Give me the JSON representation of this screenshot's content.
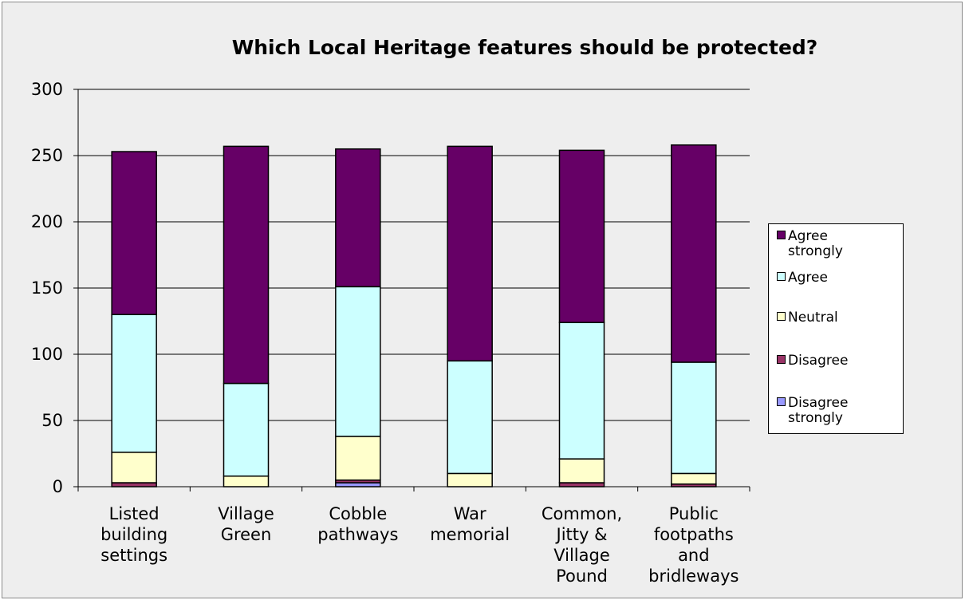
{
  "chart_data": {
    "type": "bar",
    "stacked": true,
    "title": "Which Local Heritage features should be protected?",
    "categories": [
      "Listed building settings",
      "Village Green",
      "Cobble pathways",
      "War memorial",
      "Common, Jitty & Village Pound",
      "Public footpaths and bridleways"
    ],
    "category_lines": [
      [
        "Listed",
        "building",
        "settings"
      ],
      [
        "Village",
        "Green"
      ],
      [
        "Cobble",
        "pathways"
      ],
      [
        "War",
        "memorial"
      ],
      [
        "Common,",
        "Jitty &",
        "Village",
        "Pound"
      ],
      [
        "Public",
        "footpaths",
        "and",
        "bridleways"
      ]
    ],
    "series": [
      {
        "name": "Disagree strongly",
        "color": "#9999ff",
        "values": [
          0,
          0,
          3,
          0,
          0,
          0
        ]
      },
      {
        "name": "Disagree",
        "color": "#993366",
        "values": [
          3,
          0,
          2,
          0,
          3,
          2
        ]
      },
      {
        "name": "Neutral",
        "color": "#ffffcc",
        "values": [
          23,
          8,
          33,
          10,
          18,
          8
        ]
      },
      {
        "name": "Agree",
        "color": "#ccffff",
        "values": [
          104,
          70,
          113,
          85,
          103,
          84
        ]
      },
      {
        "name": "Agree strongly",
        "color": "#660066",
        "values": [
          123,
          179,
          104,
          162,
          130,
          164
        ]
      }
    ],
    "legend": {
      "position": "right",
      "order": [
        "Agree strongly",
        "Agree",
        "Neutral",
        "Disagree",
        "Disagree strongly"
      ],
      "lines": [
        [
          "Agree",
          "strongly"
        ],
        [
          "Agree"
        ],
        [
          "Neutral"
        ],
        [
          "Disagree"
        ],
        [
          "Disagree",
          "strongly"
        ]
      ]
    },
    "ylim": [
      0,
      300
    ],
    "yticks": [
      "0",
      "50",
      "100",
      "150",
      "200",
      "250",
      "300"
    ],
    "grid": true
  }
}
